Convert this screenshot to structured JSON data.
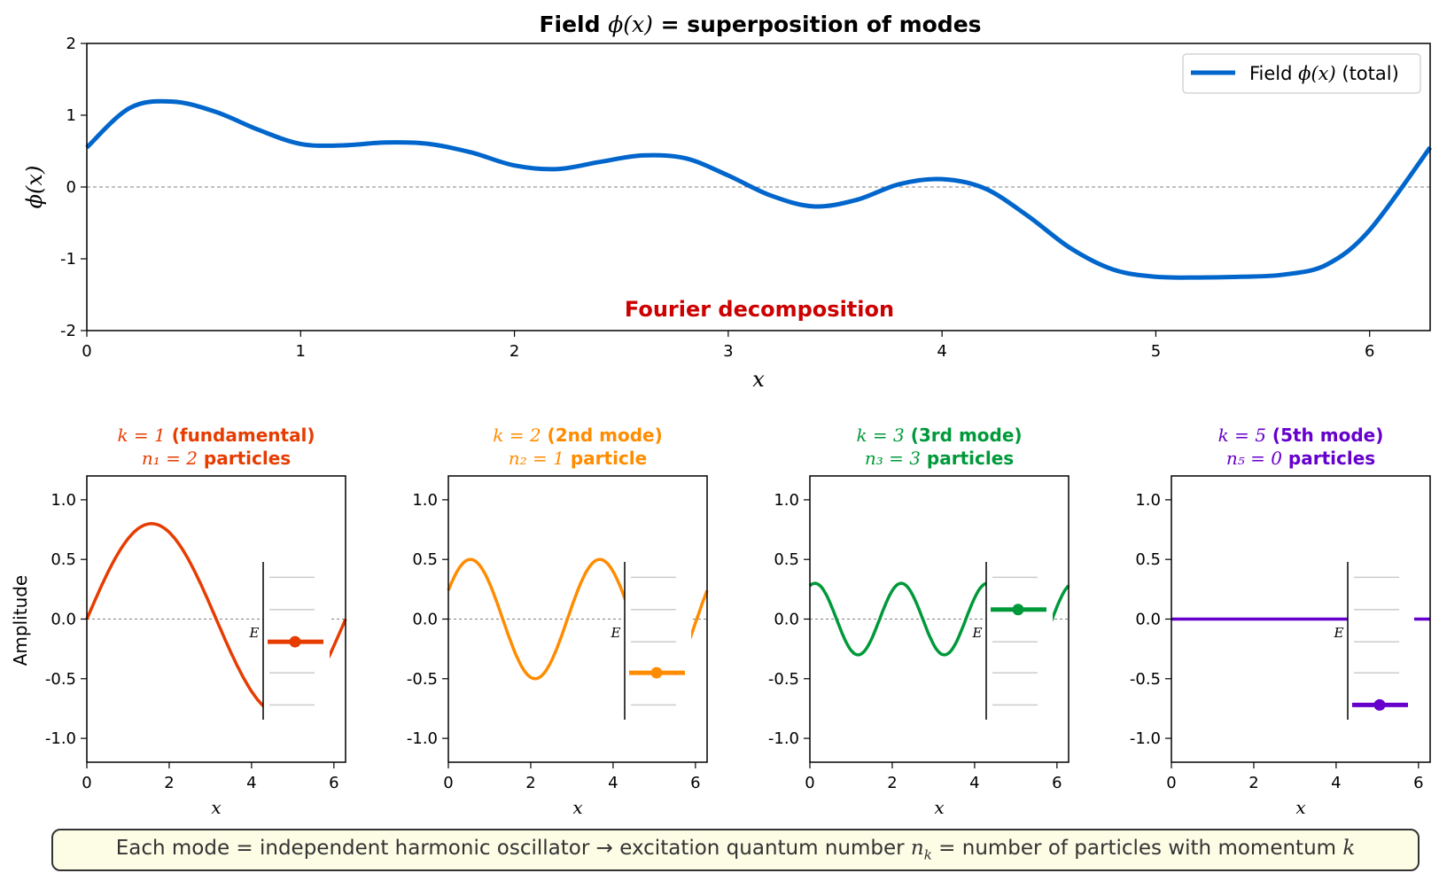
{
  "main": {
    "title_prefix": "Field ",
    "title_var": "ϕ(x)",
    "title_suffix": " = superposition of modes",
    "xlabel": "x",
    "ylabel": "ϕ(x)",
    "annotation": "Fourier decomposition",
    "legend_prefix": "Field ",
    "legend_var": "ϕ(x)",
    "legend_suffix": " (total)"
  },
  "modes": [
    {
      "k_label": "k = 1",
      "title_rest": " (fundamental)",
      "n_label": "n₁ = 2",
      "n_rest": " particles"
    },
    {
      "k_label": "k = 2",
      "title_rest": " (2nd mode)",
      "n_label": "n₂ = 1",
      "n_rest": " particle"
    },
    {
      "k_label": "k = 3",
      "title_rest": " (3rd mode)",
      "n_label": "n₃ = 3",
      "n_rest": " particles"
    },
    {
      "k_label": "k = 5",
      "title_rest": " (5th mode)",
      "n_label": "n₅ = 0",
      "n_rest": " particles"
    }
  ],
  "sub_xlabel": "x",
  "sub_ylabel": "Amplitude",
  "energy_label": "E",
  "caption": {
    "part1": "Each mode = independent harmonic oscillator → excitation quantum number ",
    "n_k": "n",
    "n_k_sub": "k",
    "part2": " = number of particles with momentum ",
    "k": "k"
  },
  "colors": {
    "field": "#0066cc",
    "mode1": "#e63c00",
    "mode2": "#ff8c00",
    "mode3": "#00993a",
    "mode5": "#6600cc",
    "annotation": "#cc0000"
  },
  "chart_data": [
    {
      "type": "line",
      "title": "Field ϕ(x) = superposition of modes",
      "xlabel": "x",
      "ylabel": "ϕ(x)",
      "xlim": [
        0,
        6.283
      ],
      "ylim": [
        -2,
        2
      ],
      "xticks": [
        0,
        1,
        2,
        3,
        4,
        5,
        6
      ],
      "yticks": [
        -2,
        -1,
        0,
        1,
        2
      ],
      "legend": "top-right",
      "series": [
        {
          "name": "Field ϕ(x) (total)",
          "x": [
            0,
            0.2,
            0.4,
            0.6,
            0.8,
            1.0,
            1.2,
            1.4,
            1.6,
            1.8,
            2.0,
            2.2,
            2.4,
            2.6,
            2.8,
            3.0,
            3.2,
            3.4,
            3.6,
            3.8,
            4.0,
            4.2,
            4.4,
            4.6,
            4.8,
            5.0,
            5.2,
            5.4,
            5.6,
            5.8,
            6.0,
            6.283
          ],
          "y": [
            0.55,
            1.1,
            1.19,
            1.05,
            0.8,
            0.6,
            0.58,
            0.62,
            0.6,
            0.48,
            0.3,
            0.25,
            0.35,
            0.44,
            0.4,
            0.16,
            -0.12,
            -0.27,
            -0.18,
            0.04,
            0.11,
            -0.02,
            -0.4,
            -0.85,
            -1.15,
            -1.25,
            -1.26,
            -1.25,
            -1.22,
            -1.08,
            -0.6,
            0.55
          ]
        }
      ]
    },
    {
      "type": "line",
      "title": "k = 1 (fundamental) n₁ = 2 particles",
      "xlabel": "x",
      "ylabel": "Amplitude",
      "xlim": [
        0,
        6.283
      ],
      "ylim": [
        -1.2,
        1.2
      ],
      "series": [
        {
          "function": "0.8*sin(1*x)",
          "amplitude": 0.8,
          "k": 1,
          "phase": 0
        }
      ],
      "energy_levels": 5,
      "n": 2
    },
    {
      "type": "line",
      "title": "k = 2 (2nd mode) n₂ = 1 particle",
      "xlabel": "x",
      "ylim": [
        -1.2,
        1.2
      ],
      "series": [
        {
          "function": "0.5*sin(2*x+0.5)",
          "amplitude": 0.5,
          "k": 2,
          "phase": 0.5
        }
      ],
      "energy_levels": 5,
      "n": 1
    },
    {
      "type": "line",
      "title": "k = 3 (3rd mode) n₃ = 3 particles",
      "xlabel": "x",
      "ylim": [
        -1.2,
        1.2
      ],
      "series": [
        {
          "function": "0.3*sin(3*x+1.2)",
          "amplitude": 0.3,
          "k": 3,
          "phase": 1.2
        }
      ],
      "energy_levels": 5,
      "n": 3
    },
    {
      "type": "line",
      "title": "k = 5 (5th mode) n₅ = 0 particles",
      "xlabel": "x",
      "ylim": [
        -1.2,
        1.2
      ],
      "series": [
        {
          "function": "0",
          "amplitude": 0,
          "k": 5,
          "phase": 0
        }
      ],
      "energy_levels": 5,
      "n": 0
    }
  ]
}
